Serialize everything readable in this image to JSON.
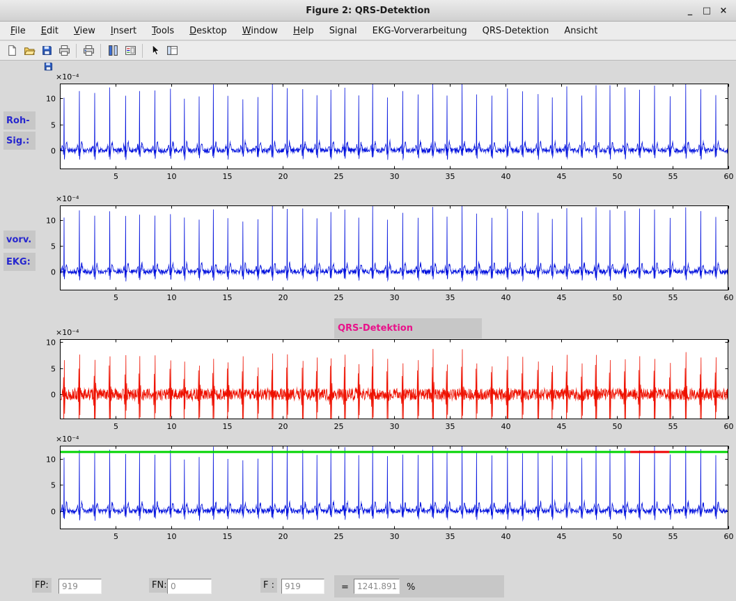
{
  "window": {
    "title": "Figure 2: QRS-Detektion",
    "controls": {
      "minimize": "_",
      "maximize": "□",
      "close": "×"
    }
  },
  "menu": {
    "items": [
      {
        "label": "File",
        "u": 0
      },
      {
        "label": "Edit",
        "u": 0
      },
      {
        "label": "View",
        "u": 0
      },
      {
        "label": "Insert",
        "u": 0
      },
      {
        "label": "Tools",
        "u": 0
      },
      {
        "label": "Desktop",
        "u": 0
      },
      {
        "label": "Window",
        "u": 0
      },
      {
        "label": "Help",
        "u": 0
      },
      {
        "label": "Signal",
        "u": -1
      },
      {
        "label": "EKG-Vorverarbeitung",
        "u": -1
      },
      {
        "label": "QRS-Detektion",
        "u": -1
      },
      {
        "label": "Ansicht",
        "u": -1
      }
    ]
  },
  "toolbar": {
    "icons": [
      "new-file",
      "open-file",
      "save-figure",
      "print-figure",
      "|",
      "print-preview",
      "|",
      "insert-colorbar",
      "insert-legend",
      "|",
      "pointer",
      "property-editor"
    ]
  },
  "labels": {
    "plot1_line1": "Roh-",
    "plot1_line2": "Sig.:",
    "plot2_line1": "vorv.",
    "plot2_line2": "EKG:",
    "plot3_title": "QRS-Detektion"
  },
  "stats": {
    "fp_label": "FP:",
    "fp_value": "919",
    "fn_label": "FN:",
    "fn_value": "0",
    "f_label": "F :",
    "f_value": "919",
    "equals": "=",
    "ratio_value": "1241.891",
    "percent": "%"
  },
  "chart_data": [
    {
      "type": "line",
      "name": "raw-ecg-signal",
      "signal": "ecg",
      "color": "#0010dd",
      "line_width": 0.8,
      "x_range": [
        0,
        60
      ],
      "y_range": [
        -3.6,
        12.8
      ],
      "xticks": [
        5,
        10,
        15,
        20,
        25,
        30,
        35,
        40,
        45,
        50,
        55,
        60
      ],
      "yticks": [
        0,
        5,
        10
      ],
      "exponent_label": "×10⁻⁴",
      "beats_approx": 45,
      "beat_interval_s": 1.33,
      "peak_amplitude_range_e4": [
        10,
        13.2
      ],
      "seed": 11
    },
    {
      "type": "line",
      "name": "preprocessed-ecg-signal",
      "signal": "ecg",
      "color": "#0010dd",
      "line_width": 0.8,
      "x_range": [
        0,
        60
      ],
      "y_range": [
        -3.6,
        12.8
      ],
      "xticks": [
        5,
        10,
        15,
        20,
        25,
        30,
        35,
        40,
        45,
        50,
        55,
        60
      ],
      "yticks": [
        0,
        5,
        10
      ],
      "exponent_label": "×10⁻⁴",
      "beats_approx": 45,
      "beat_interval_s": 1.33,
      "peak_amplitude_range_e4": [
        10,
        13.2
      ],
      "seed": 12
    },
    {
      "type": "line",
      "name": "qrs-filtered-signal",
      "signal": "filtered",
      "color": "#ee1100",
      "line_width": 0.8,
      "x_range": [
        0,
        60
      ],
      "y_range": [
        -4.8,
        10.6
      ],
      "xticks": [
        5,
        10,
        15,
        20,
        25,
        30,
        35,
        40,
        45,
        50,
        55,
        60
      ],
      "yticks": [
        0,
        5,
        10
      ],
      "exponent_label": "×10⁻⁴",
      "beats_approx": 45,
      "beat_interval_s": 1.33,
      "peak_amplitude_range_e4": [
        7.5,
        10.2
      ],
      "seed": 13
    },
    {
      "type": "line",
      "name": "detection-result-signal",
      "signal": "ecg",
      "color": "#0010dd",
      "line_width": 0.8,
      "x_range": [
        0,
        60
      ],
      "y_range": [
        -3.5,
        12.5
      ],
      "xticks": [
        5,
        10,
        15,
        20,
        25,
        30,
        35,
        40,
        45,
        50,
        55,
        60
      ],
      "yticks": [
        0,
        5,
        10
      ],
      "exponent_label": "×10⁻⁴",
      "beats_approx": 45,
      "beat_interval_s": 1.33,
      "peak_amplitude_range_e4": [
        10,
        13.2
      ],
      "seed": 14,
      "marker": {
        "y": 11.3,
        "color": "#00d400",
        "line_width": 3,
        "segment": [
          51.2,
          54.7
        ],
        "segment_color": "#ee0000"
      }
    }
  ]
}
